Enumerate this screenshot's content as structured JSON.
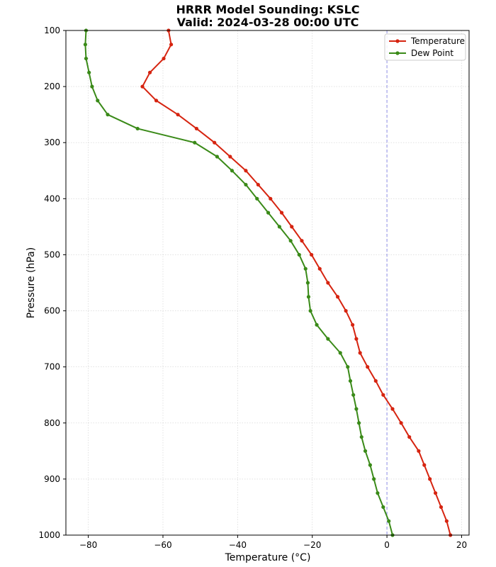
{
  "chart_data": {
    "type": "line",
    "title": "HRRR Model Sounding: KSLC",
    "subtitle": "Valid: 2024-03-28 00:00 UTC",
    "xlabel": "Temperature (°C)",
    "ylabel": "Pressure (hPa)",
    "xlim": [
      -86,
      22
    ],
    "ylim": [
      1000,
      100
    ],
    "y_inverted": true,
    "grid": true,
    "legend_position": "top-right",
    "xticks": [
      -80,
      -60,
      -40,
      -20,
      0,
      20
    ],
    "yticks": [
      100,
      200,
      300,
      400,
      500,
      600,
      700,
      800,
      900,
      1000
    ],
    "reference_line": {
      "axis": "x",
      "value": 0,
      "color": "#6a6ae0",
      "style": "dashed"
    },
    "pressure": [
      1000,
      975,
      950,
      925,
      900,
      875,
      850,
      825,
      800,
      775,
      750,
      725,
      700,
      675,
      650,
      625,
      600,
      575,
      550,
      525,
      500,
      475,
      450,
      425,
      400,
      375,
      350,
      325,
      300,
      275,
      250,
      225,
      200,
      175,
      150,
      125,
      100
    ],
    "series": [
      {
        "name": "Temperature",
        "color": "#d62410",
        "values": [
          17.0,
          16.0,
          14.5,
          13.0,
          11.5,
          10.0,
          8.5,
          6.0,
          3.8,
          1.5,
          -1.0,
          -3.0,
          -5.2,
          -7.2,
          -8.2,
          -9.2,
          -11.0,
          -13.2,
          -15.8,
          -18.0,
          -20.2,
          -22.8,
          -25.5,
          -28.2,
          -31.2,
          -34.5,
          -37.8,
          -42.0,
          -46.2,
          -51.0,
          -56.0,
          -61.8,
          -65.5,
          -63.5,
          -59.8,
          -57.8,
          -58.5
        ]
      },
      {
        "name": "Dew Point",
        "color": "#3a8a18",
        "values": [
          1.5,
          0.5,
          -1.0,
          -2.5,
          -3.5,
          -4.5,
          -5.8,
          -6.8,
          -7.5,
          -8.2,
          -9.0,
          -9.8,
          -10.5,
          -12.5,
          -15.8,
          -18.8,
          -20.5,
          -21.0,
          -21.2,
          -21.8,
          -23.5,
          -25.8,
          -28.8,
          -31.8,
          -34.8,
          -37.8,
          -41.5,
          -45.5,
          -51.5,
          -66.8,
          -74.8,
          -77.5,
          -79.0,
          -79.8,
          -80.6,
          -80.8,
          -80.6
        ]
      }
    ]
  }
}
